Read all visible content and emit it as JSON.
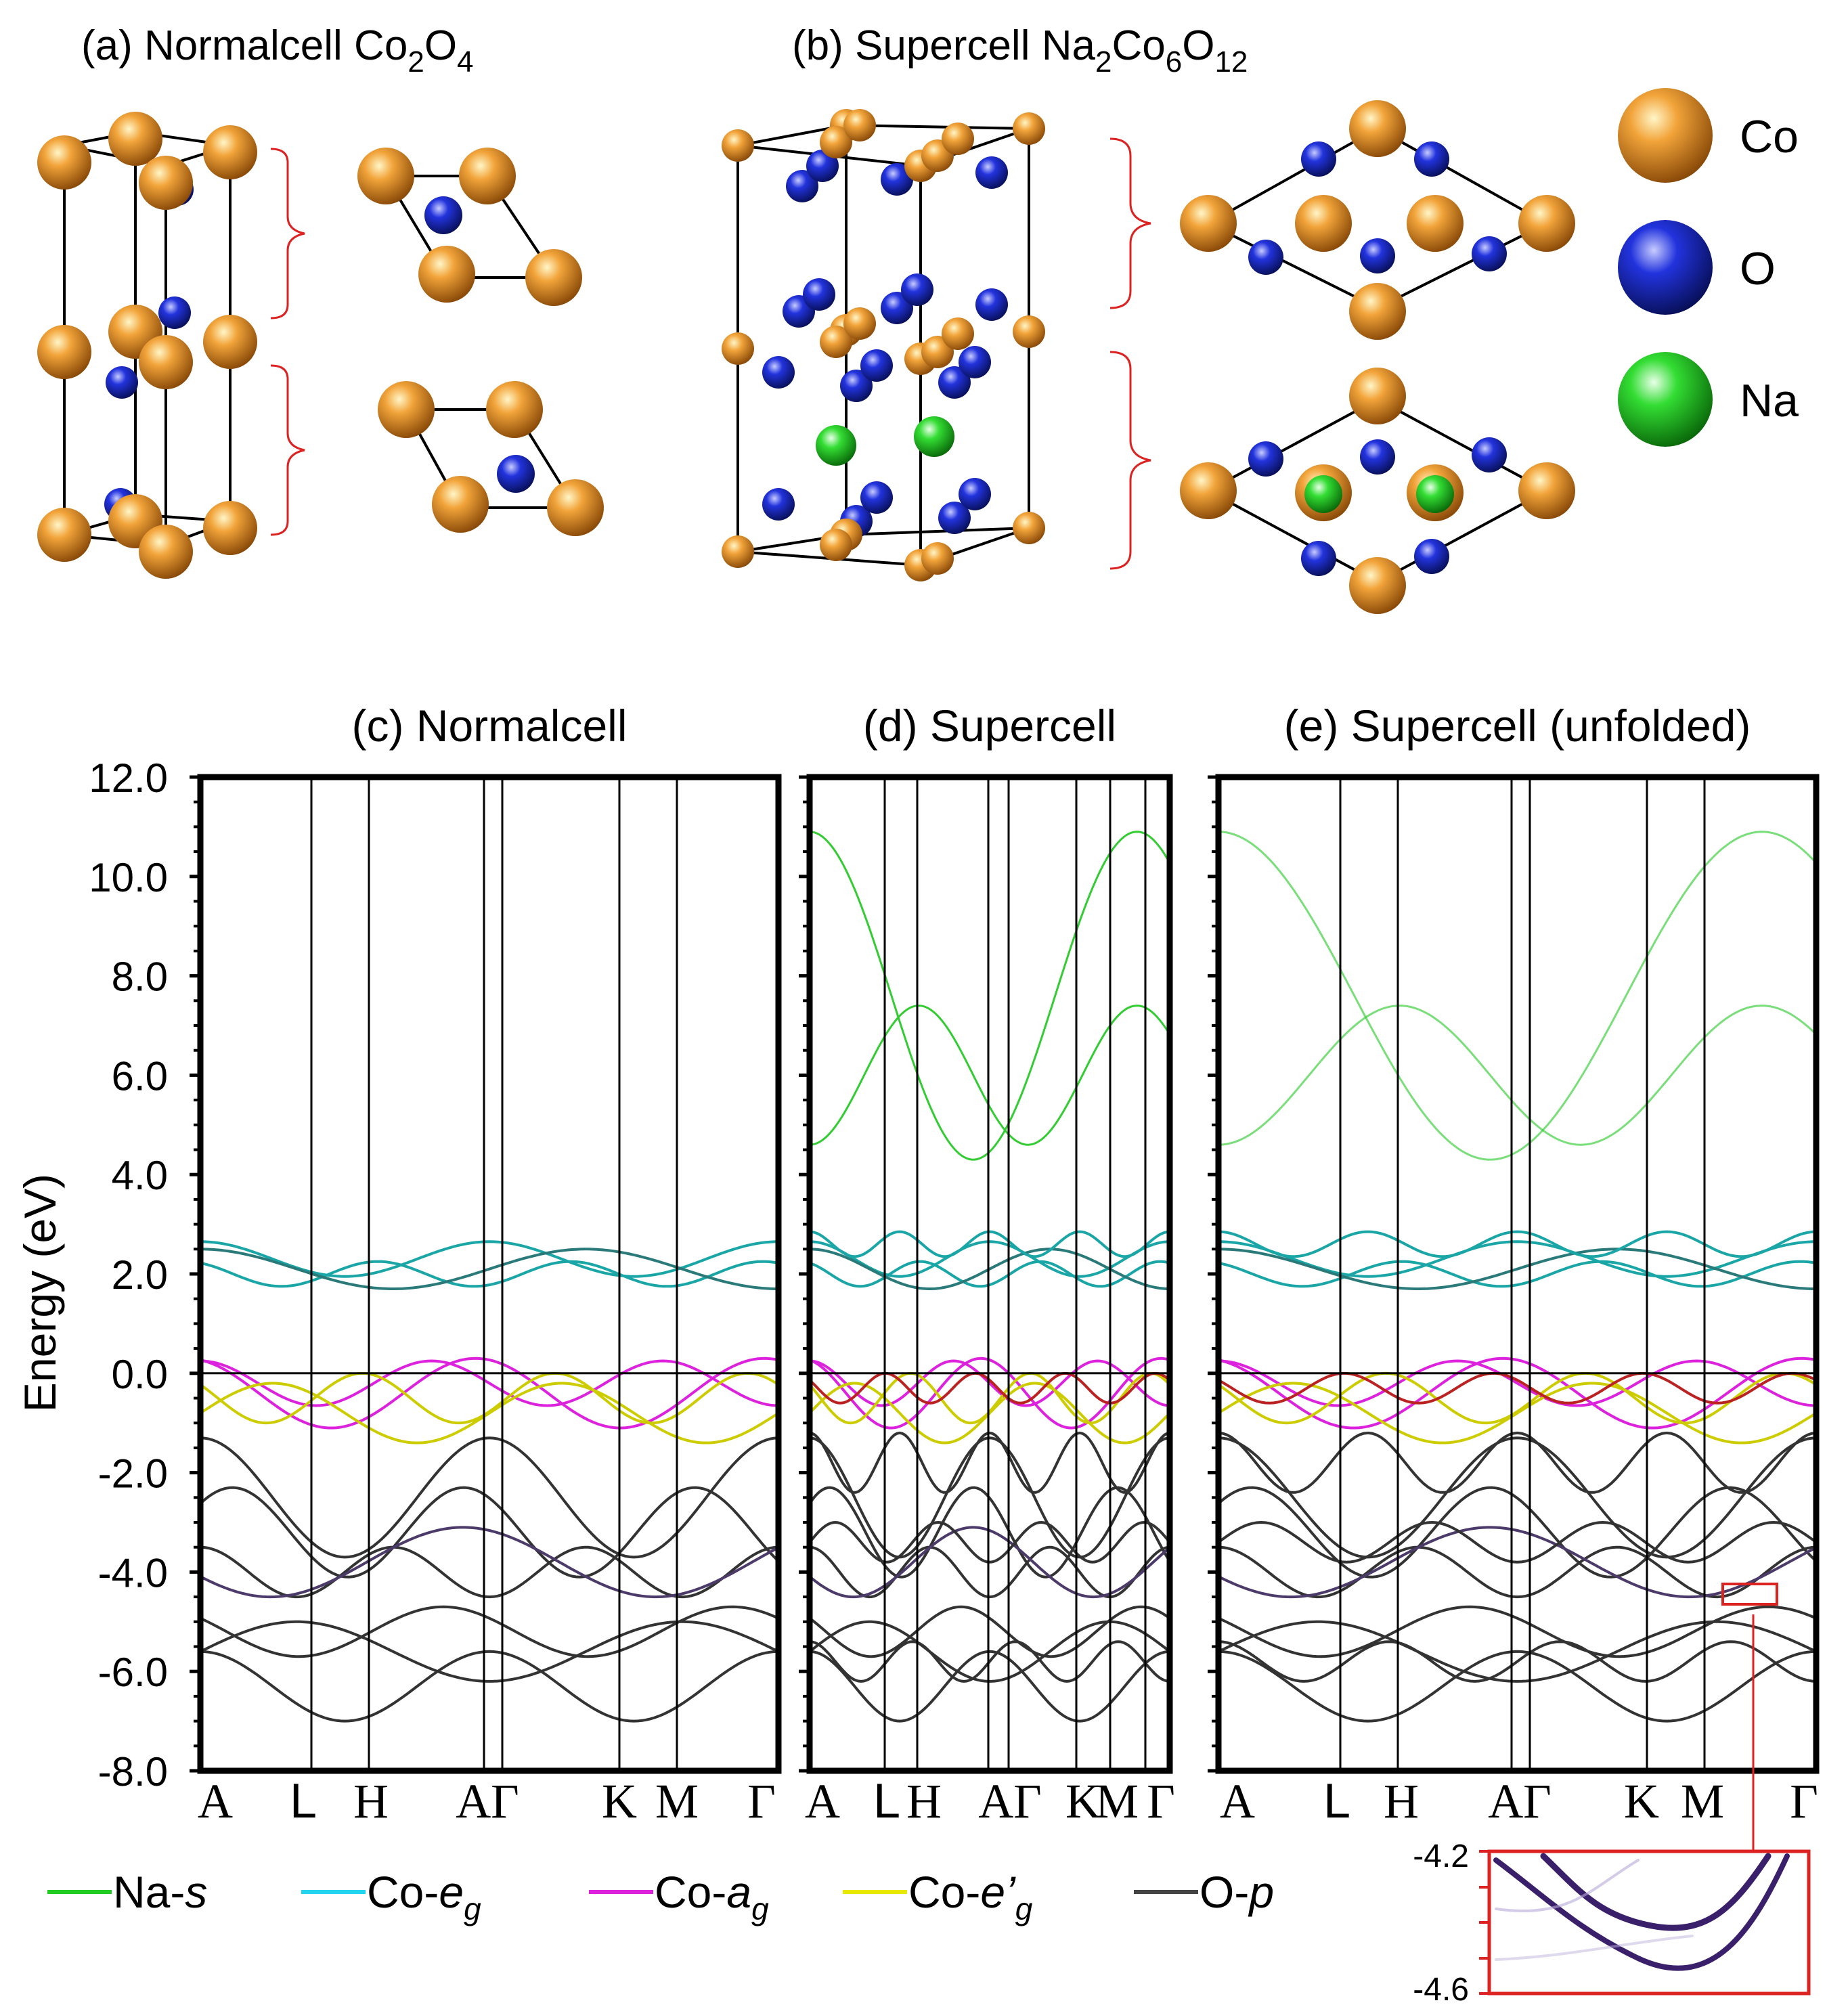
{
  "structure": {
    "panel_a": {
      "title_prefix": "(a) Normalcell Co",
      "sub1": "2",
      "mid1": "O",
      "sub2": "4"
    },
    "panel_b": {
      "title_prefix": "(b) Supercell Na",
      "sub1": "2",
      "mid1": "Co",
      "sub2": "6",
      "mid2": "O",
      "sub3": "12"
    },
    "legend": [
      {
        "label": "Co",
        "color": "#e08a1e"
      },
      {
        "label": "O",
        "color": "#1a2fd0"
      },
      {
        "label": "Na",
        "color": "#22cc22"
      }
    ]
  },
  "bands": {
    "panels": [
      {
        "title": "(c) Normalcell",
        "kpoints": [
          "A",
          "L",
          "H",
          "AΓ",
          "K",
          "M",
          "Γ"
        ]
      },
      {
        "title": "(d) Supercell",
        "kpoints": [
          "A",
          "L",
          "H",
          "AΓ",
          "K",
          "M",
          "Γ"
        ]
      },
      {
        "title": "(e) Supercell (unfolded)",
        "kpoints": [
          "A",
          "L",
          "H",
          "AΓ",
          "K",
          "M",
          "Γ"
        ]
      }
    ],
    "ylabel": "Energy (eV)",
    "yticks": [
      "12.0",
      "10.0",
      "8.0",
      "6.0",
      "4.0",
      "2.0",
      "0.0",
      "-2.0",
      "-4.0",
      "-6.0",
      "-8.0"
    ],
    "ylim": [
      -8.0,
      12.0
    ],
    "inset": {
      "ytop": "-4.2",
      "ybottom": "-4.6"
    },
    "legend": [
      {
        "name": "Na-",
        "sym": "s",
        "sub": "",
        "prime": "",
        "color": "#22cc22"
      },
      {
        "name": "Co-",
        "sym": "e",
        "sub": "g",
        "prime": "",
        "color": "#22d4ee"
      },
      {
        "name": "Co-",
        "sym": "a",
        "sub": "g",
        "prime": "",
        "color": "#dd22dd"
      },
      {
        "name": "Co-",
        "sym": "e",
        "sub": "g",
        "prime": "’",
        "color": "#e8e800"
      },
      {
        "name": "O-",
        "sym": "p",
        "sub": "",
        "prime": "",
        "color": "#444444"
      }
    ]
  }
}
